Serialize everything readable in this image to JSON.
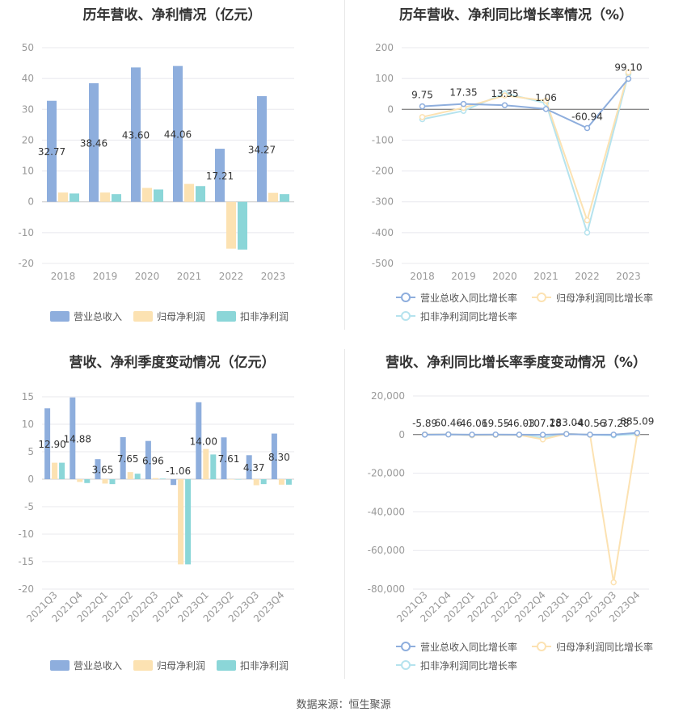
{
  "source": "数据来源：恒生聚源",
  "colors": {
    "revenue": "#8eaedd",
    "net_profit": "#fce2b2",
    "deducted_profit": "#8bd6d8",
    "revenue_line": "#8eaedd",
    "net_profit_line": "#fce2b2",
    "deducted_line": "#b5e3ee",
    "grid": "#e8e8ee",
    "axis_text": "#999999"
  },
  "chart_data": [
    {
      "id": "annual",
      "type": "bar",
      "title": "历年营收、净利情况（亿元）",
      "categories": [
        "2018",
        "2019",
        "2020",
        "2021",
        "2022",
        "2023"
      ],
      "ylim": [
        -20,
        50
      ],
      "yticks": [
        -20,
        -10,
        0,
        10,
        20,
        30,
        40,
        50
      ],
      "series": [
        {
          "name": "营业总收入",
          "values": [
            32.77,
            38.46,
            43.6,
            44.06,
            17.21,
            34.27
          ]
        },
        {
          "name": "归母净利润",
          "values": [
            3.0,
            3.0,
            4.5,
            5.8,
            -15.2,
            2.9
          ]
        },
        {
          "name": "扣非净利润",
          "values": [
            2.7,
            2.5,
            4.0,
            5.1,
            -15.5,
            2.5
          ]
        }
      ],
      "data_labels": [
        "32.77",
        "38.46",
        "43.60",
        "44.06",
        "17.21",
        "34.27"
      ],
      "grid": true,
      "legend": "bottom"
    },
    {
      "id": "annual_growth",
      "type": "line",
      "title": "历年营收、净利同比增长率情况（%）",
      "categories": [
        "2018",
        "2019",
        "2020",
        "2021",
        "2022",
        "2023"
      ],
      "ylim": [
        -500,
        200
      ],
      "yticks": [
        -500,
        -400,
        -300,
        -200,
        -100,
        0,
        100,
        200
      ],
      "series": [
        {
          "name": "营业总收入同比增长率",
          "values": [
            9.75,
            17.35,
            13.35,
            1.06,
            -60.94,
            99.1
          ]
        },
        {
          "name": "归母净利润同比增长率",
          "values": [
            -25,
            5,
            45,
            28,
            -360,
            120
          ]
        },
        {
          "name": "扣非净利润同比增长率",
          "values": [
            -32,
            -5,
            52,
            20,
            -400,
            115
          ]
        }
      ],
      "data_labels": [
        "9.75",
        "17.35",
        "13.35",
        "1.06",
        "-60.94",
        "99.10"
      ],
      "grid": true,
      "legend": "bottom"
    },
    {
      "id": "quarterly",
      "type": "bar",
      "title": "营收、净利季度变动情况（亿元）",
      "categories": [
        "2021Q3",
        "2021Q4",
        "2022Q1",
        "2022Q2",
        "2022Q3",
        "2022Q4",
        "2023Q1",
        "2023Q2",
        "2023Q3",
        "2023Q4"
      ],
      "ylim": [
        -20,
        15
      ],
      "yticks": [
        -20,
        -15,
        -10,
        -5,
        0,
        5,
        10,
        15
      ],
      "series": [
        {
          "name": "营业总收入",
          "values": [
            12.9,
            14.88,
            3.65,
            7.65,
            6.96,
            -1.06,
            14.0,
            7.61,
            4.37,
            8.3
          ]
        },
        {
          "name": "归母净利润",
          "values": [
            3.0,
            -0.5,
            -0.8,
            1.3,
            0.2,
            -15.5,
            5.5,
            0.0,
            -1.1,
            -1.0
          ]
        },
        {
          "name": "扣非净利润",
          "values": [
            3.0,
            -0.7,
            -0.9,
            1.0,
            0.1,
            -15.5,
            4.5,
            0.0,
            -0.9,
            -1.0
          ]
        }
      ],
      "data_labels": [
        "12.90",
        "14.88",
        "3.65",
        "7.65",
        "6.96",
        "-1.06",
        "14.00",
        "7.61",
        "4.37",
        "8.30"
      ],
      "grid": true,
      "legend": "bottom"
    },
    {
      "id": "quarterly_growth",
      "type": "line",
      "title": "营收、净利同比增长率季度变动情况（%）",
      "categories": [
        "2021Q3",
        "2021Q4",
        "2022Q1",
        "2022Q2",
        "2022Q3",
        "2022Q4",
        "2023Q1",
        "2023Q2",
        "2023Q3",
        "2023Q4"
      ],
      "ylim": [
        -80000,
        20000
      ],
      "yticks": [
        -80000,
        -60000,
        -40000,
        -20000,
        0,
        20000
      ],
      "ytick_labels": [
        "-80,000",
        "-60,000",
        "-40,000",
        "-20,000",
        "0",
        "20,000"
      ],
      "series": [
        {
          "name": "营业总收入同比增长率",
          "values": [
            -5.89,
            60.46,
            -46.06,
            19.55,
            -46.03,
            -107.18,
            283.04,
            -40.56,
            -37.28,
            885.09
          ]
        },
        {
          "name": "归母净利润同比增长率",
          "values": [
            50,
            100,
            -300,
            -200,
            -200,
            -2500,
            400,
            -50,
            -76500,
            200
          ]
        },
        {
          "name": "扣非净利润同比增长率",
          "values": [
            40,
            80,
            -350,
            -150,
            -180,
            -1500,
            350,
            -60,
            -400,
            300
          ]
        }
      ],
      "data_labels": [
        "-5.89",
        "60.46",
        "-46.06",
        "19.55",
        "-46.03",
        "-107.18",
        "283.04",
        "-40.56",
        "-37.28",
        "885.09"
      ],
      "grid": true,
      "legend": "bottom"
    }
  ]
}
